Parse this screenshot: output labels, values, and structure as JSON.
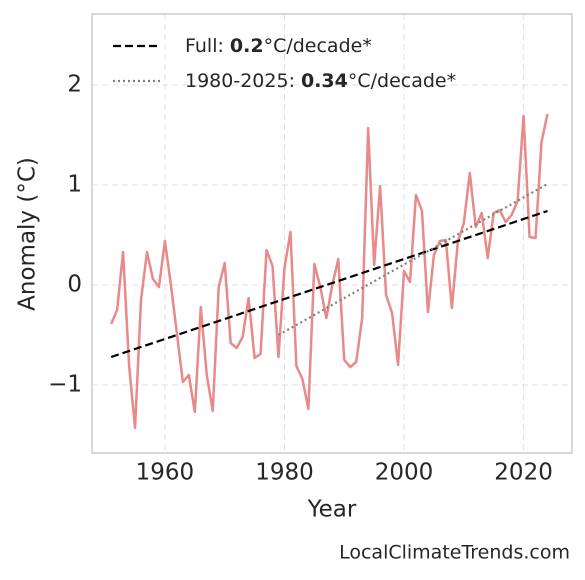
{
  "chart_data": {
    "type": "line",
    "xlabel": "Year",
    "ylabel": "Anomaly (°C)",
    "source": "LocalClimateTrends.com",
    "xlim": [
      1947.8,
      2028.1
    ],
    "ylim": [
      -1.68,
      2.71
    ],
    "xticks": [
      1960,
      1980,
      2000,
      2020
    ],
    "yticks": [
      {
        "value": -1,
        "label": "−1"
      },
      0,
      1,
      2
    ],
    "grid": true,
    "legend": "upper left",
    "series": [
      {
        "name": "Anomaly",
        "color": "#e8898a",
        "x": [
          1951,
          1952,
          1953,
          1954,
          1955,
          1956,
          1957,
          1958,
          1959,
          1960,
          1961,
          1962,
          1963,
          1964,
          1965,
          1966,
          1967,
          1968,
          1969,
          1970,
          1971,
          1972,
          1973,
          1974,
          1975,
          1976,
          1977,
          1978,
          1979,
          1980,
          1981,
          1982,
          1983,
          1984,
          1985,
          1986,
          1987,
          1988,
          1989,
          1990,
          1991,
          1992,
          1993,
          1994,
          1995,
          1996,
          1997,
          1998,
          1999,
          2000,
          2001,
          2002,
          2003,
          2004,
          2005,
          2006,
          2007,
          2008,
          2009,
          2010,
          2011,
          2012,
          2013,
          2014,
          2015,
          2016,
          2017,
          2018,
          2019,
          2020,
          2021,
          2022,
          2023,
          2024
        ],
        "values": [
          -0.39,
          -0.25,
          0.33,
          -0.8,
          -1.43,
          -0.15,
          0.33,
          0.06,
          -0.02,
          0.44,
          0.0,
          -0.48,
          -0.97,
          -0.9,
          -1.27,
          -0.22,
          -0.9,
          -1.26,
          -0.02,
          0.22,
          -0.58,
          -0.63,
          -0.52,
          -0.13,
          -0.73,
          -0.69,
          0.35,
          0.19,
          -0.72,
          0.17,
          0.53,
          -0.81,
          -0.94,
          -1.24,
          0.21,
          -0.02,
          -0.33,
          0.0,
          0.26,
          -0.75,
          -0.82,
          -0.77,
          -0.33,
          1.57,
          0.2,
          0.99,
          -0.1,
          -0.28,
          -0.8,
          0.14,
          0.03,
          0.9,
          0.74,
          -0.27,
          0.3,
          0.44,
          0.45,
          -0.23,
          0.43,
          0.62,
          1.12,
          0.58,
          0.72,
          0.27,
          0.72,
          0.75,
          0.63,
          0.7,
          0.84,
          1.69,
          0.48,
          0.47,
          1.43,
          1.71
        ]
      },
      {
        "label": "Full:",
        "slope": 0.2,
        "unit": "°C/decade*",
        "color": "#000000",
        "dash": "dashed",
        "x": [
          1951,
          2024
        ],
        "values": [
          -0.72,
          0.74
        ]
      },
      {
        "label": "1980-2025:",
        "slope": 0.34,
        "unit": "°C/decade*",
        "color": "#808080",
        "dash": "dotted",
        "x": [
          1979,
          2024
        ],
        "values": [
          -0.5,
          1.01
        ]
      }
    ]
  }
}
